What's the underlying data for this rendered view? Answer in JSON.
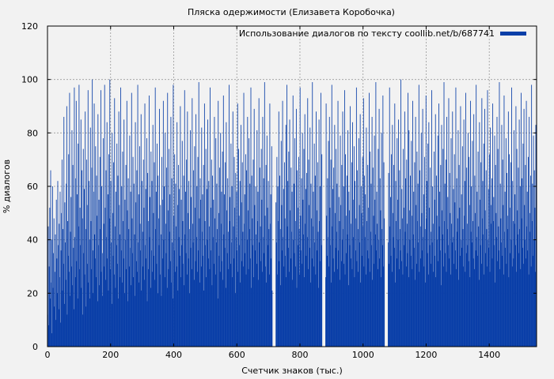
{
  "chart_data": {
    "type": "bar",
    "title": "Пляска одержимости (Елизавета Коробочка)",
    "xlabel": "Счетчик знаков (тыс.)",
    "ylabel": "% диалогов",
    "xlim": [
      0,
      1550
    ],
    "ylim": [
      0,
      120
    ],
    "xticks": [
      0,
      200,
      400,
      600,
      800,
      1000,
      1200,
      1400
    ],
    "yticks": [
      0,
      20,
      40,
      60,
      80,
      100,
      120
    ],
    "grid": true,
    "legend_position": "top-right",
    "colors": {
      "series": "#0a3fa8",
      "grid": "#999999",
      "background": "#f2f2f2"
    },
    "gaps": [
      [
        712,
        722
      ],
      [
        870,
        880
      ],
      [
        1068,
        1078
      ]
    ],
    "series": [
      {
        "name": "Использование диалогов по тексту coollib.net/b/687741",
        "bin_width": 1.5,
        "values": [
          12,
          45,
          8,
          30,
          52,
          18,
          66,
          24,
          40,
          5,
          60,
          22,
          35,
          48,
          15,
          28,
          42,
          10,
          55,
          33,
          20,
          62,
          38,
          14,
          46,
          26,
          58,
          9,
          36,
          50,
          70,
          21,
          44,
          31,
          86,
          16,
          54,
          39,
          25,
          61,
          90,
          12,
          47,
          34,
          72,
          28,
          95,
          19,
          43,
          56,
          30,
          81,
          23,
          68,
          37,
          14,
          97,
          41,
          26,
          63,
          92,
          32,
          57,
          18,
          76,
          45,
          98,
          29,
          52,
          38,
          85,
          22,
          66,
          48,
          12,
          74,
          35,
          59,
          27,
          88,
          44,
          15,
          70,
          53,
          31,
          96,
          24,
          62,
          40,
          18,
          82,
          47,
          29,
          67,
          100,
          36,
          20,
          58,
          91,
          42,
          33,
          75,
          26,
          64,
          49,
          17,
          87,
          38,
          55,
          23,
          71,
          44,
          96,
          28,
          60,
          35,
          19,
          78,
          46,
          30,
          98,
          52,
          25,
          66,
          41,
          84,
          33,
          57,
          21,
          72,
          48,
          100,
          29,
          62,
          39,
          16,
          80,
          50,
          34,
          69,
          27,
          93,
          45,
          22,
          58,
          38,
          76,
          31,
          64,
          18,
          88,
          53,
          42,
          26,
          97,
          36,
          60,
          24,
          73,
          47,
          33,
          85,
          20,
          55,
          40,
          68,
          29,
          92,
          51,
          17,
          63,
          44,
          30,
          79,
          37,
          58,
          23,
          95,
          48,
          35,
          71,
          26,
          61,
          42,
          19,
          84,
          54,
          32,
          66,
          28,
          98,
          39,
          57,
          24,
          75,
          46,
          36,
          87,
          21,
          62,
          43,
          30,
          70,
          52,
          25,
          91,
          38,
          59,
          33,
          78,
          17,
          65,
          47,
          29,
          94,
          41,
          56,
          22,
          73,
          36,
          62,
          28,
          83,
          50,
          34,
          69,
          25,
          97,
          44,
          58,
          31,
          76,
          20,
          64,
          48,
          38,
          89,
          27,
          53,
          42,
          19,
          71,
          55,
          33,
          92,
          40,
          60,
          26,
          80,
          46,
          35,
          67,
          22,
          95,
          51,
          29,
          74,
          43,
          57,
          32,
          86,
          24,
          63,
          39,
          18,
          98,
          49,
          36,
          72,
          28,
          61,
          45,
          30,
          84,
          53,
          21,
          68,
          41,
          59,
          34,
          90,
          26,
          55,
          38,
          77,
          47,
          31,
          64,
          23,
          96,
          42,
          58,
          35,
          70,
          27,
          88,
          50,
          33,
          62,
          44,
          20,
          81,
          37,
          56,
          29,
          93,
          46,
          39,
          66,
          25,
          75,
          52,
          32,
          87,
          41,
          60,
          28,
          71,
          36,
          99,
          48,
          24,
          63,
          55,
          30,
          82,
          43,
          57,
          34,
          68,
          21,
          91,
          47,
          38,
          74,
          26,
          59,
          40,
          85,
          33,
          62,
          45,
          29,
          97,
          52,
          36,
          70,
          23,
          64,
          41,
          55,
          31,
          86,
          48,
          27,
          78,
          39,
          61,
          44,
          18,
          92,
          50,
          34,
          67,
          28,
          80,
          46,
          58,
          32,
          73,
          25,
          94,
          42,
          57,
          37,
          69,
          22,
          84,
          51,
          35,
          63,
          43,
          29,
          98,
          47,
          56,
          31,
          76,
          39,
          60,
          26,
          88,
          45,
          33,
          71,
          52,
          20,
          65,
          41,
          58,
          36,
          91,
          28,
          74,
          49,
          38,
          62,
          24,
          83,
          54,
          32,
          69,
          43,
          30,
          95,
          46,
          57,
          35,
          72,
          27,
          66,
          40,
          86,
          51,
          29,
          78,
          44,
          61,
          33,
          97,
          22,
          64,
          48,
          38,
          70,
          26,
          89,
          53,
          36,
          60,
          42,
          31,
          81,
          47,
          58,
          25,
          93,
          39,
          67,
          45,
          32,
          74,
          55,
          28,
          86,
          41,
          63,
          35,
          99,
          49,
          30,
          68,
          24,
          79,
          52,
          38,
          62,
          44,
          27,
          91,
          46,
          57,
          33,
          75,
          21,
          84,
          50,
          36,
          66,
          42,
          29,
          96,
          54,
          39,
          71,
          27,
          60,
          47,
          88,
          32,
          64,
          44,
          23,
          77,
          53,
          36,
          92,
          41,
          59,
          30,
          69,
          48,
          34,
          83,
          26,
          98,
          45,
          62,
          37,
          73,
          28,
          85,
          51,
          33,
          67,
          43,
          58,
          25,
          94,
          40,
          61,
          35,
          78,
          47,
          30,
          89,
          22,
          66,
          52,
          38,
          71,
          44,
          27,
          97,
          49,
          36,
          63,
          31,
          80,
          55,
          42,
          74,
          26,
          87,
          46,
          59,
          34,
          65,
          41,
          93,
          29,
          70,
          53,
          37,
          82,
          24,
          61,
          48,
          33,
          99,
          45,
          58,
          30,
          76,
          39,
          64,
          27,
          88,
          51,
          36,
          69,
          43,
          22,
          85,
          47,
          60,
          32,
          95,
          38,
          72,
          54,
          28,
          66,
          44,
          80,
          35,
          57,
          26,
          91,
          49,
          34,
          63,
          41,
          77,
          30,
          86,
          52,
          38,
          70,
          24,
          98,
          45,
          59,
          33,
          67,
          28,
          83,
          50,
          37,
          74,
          43,
          61,
          29,
          92,
          36,
          56,
          47,
          25,
          79,
          53,
          32,
          68,
          40,
          88,
          44,
          60,
          31,
          96,
          27,
          72,
          49,
          35,
          64,
          42,
          81,
          23,
          58,
          51,
          38,
          90,
          46,
          33,
          69,
          29,
          84,
          55,
          41,
          75,
          26,
          62,
          48,
          36,
          97,
          32,
          66,
          44,
          28,
          78,
          53,
          39,
          87,
          24,
          60,
          50,
          34,
          71,
          45,
          93,
          30,
          64,
          41,
          57,
          27,
          82,
          47,
          36,
          68,
          52,
          33,
          95,
          28,
          73,
          43,
          61,
          38,
          86,
          25,
          67,
          49,
          31,
          79,
          55,
          42,
          99,
          36,
          58,
          46,
          29,
          74,
          40,
          89,
          33,
          63,
          51,
          26,
          80,
          44,
          38,
          94,
          30,
          69,
          48,
          35,
          76,
          42,
          60,
          27,
          87,
          53,
          39,
          65,
          31,
          97,
          45,
          56,
          34,
          72,
          28,
          83,
          50,
          41,
          68,
          37,
          91,
          24,
          62,
          47,
          33,
          78,
          55,
          40,
          85,
          29,
          66,
          44,
          36,
          100,
          32,
          59,
          48,
          27,
          74,
          52,
          38,
          88,
          43,
          63,
          30,
          70,
          46,
          35,
          95,
          26,
          81,
          51,
          40,
          64,
          34,
          77,
          49,
          29,
          92,
          42,
          58,
          37,
          69,
          25,
          86,
          53,
          31,
          73,
          47,
          61,
          39,
          98,
          28,
          66,
          45,
          33,
          80,
          50,
          36,
          89,
          41,
          57,
          30,
          71,
          44,
          24,
          94,
          48,
          62,
          35,
          76,
          27,
          84,
          52,
          38,
          67,
          43,
          31,
          96,
          39,
          60,
          46,
          28,
          73,
          55,
          34,
          87,
          26,
          64,
          49,
          40,
          79,
          32,
          91,
          45,
          58,
          36,
          68,
          23,
          83,
          51,
          42,
          74,
          30,
          99,
          47,
          61,
          35,
          70,
          28,
          86,
          44,
          56,
          38,
          93,
          33,
          65,
          50,
          27,
          78,
          46,
          39,
          88,
          41,
          59,
          31,
          72,
          54,
          36,
          97,
          29,
          63,
          43,
          48,
          81,
          25,
          68,
          52,
          34,
          90,
          40,
          57,
          37,
          75,
          44,
          30,
          85,
          49,
          62,
          28,
          95,
          35,
          67,
          46,
          38,
          80,
          32,
          71,
          53,
          26,
          92,
          43,
          60,
          39,
          77,
          47,
          33,
          87,
          29,
          64,
          50,
          36,
          98,
          41,
          58,
          34,
          73,
          45,
          25,
          84,
          55,
          38,
          69,
          31,
          93,
          48,
          62,
          42,
          76,
          27,
          89,
          51,
          35,
          66,
          44,
          30,
          96,
          40,
          59,
          37,
          72,
          28,
          82,
          53,
          46,
          63,
          33,
          91,
          47,
          56,
          38,
          79,
          24,
          68,
          50,
          41,
          86,
          32,
          74,
          45,
          36,
          99,
          29,
          61,
          48,
          39,
          83,
          34,
          70,
          53,
          27,
          94,
          43,
          58,
          37,
          78,
          31,
          65,
          49,
          44,
          88,
          26,
          72,
          52,
          35,
          69,
          40,
          97,
          30,
          62,
          47,
          33,
          81,
          46,
          57,
          38,
          90,
          28,
          74,
          51,
          42,
          67,
          35,
          85,
          44,
          60,
          29,
          95,
          48,
          63,
          37,
          76,
          31,
          89,
          53,
          40,
          68,
          33,
          92,
          45,
          58,
          36,
          71,
          27,
          86,
          50,
          43,
          64,
          30,
          98,
          47,
          61,
          34,
          79,
          40,
          66,
          52,
          28,
          83,
          45,
          57,
          36,
          93,
          31,
          72,
          48,
          39,
          88,
          43,
          60,
          29,
          97,
          35,
          65,
          51,
          38,
          75,
          46,
          32,
          90,
          41,
          69,
          55,
          27,
          84,
          49,
          62,
          34,
          78,
          38,
          59,
          44,
          30,
          95,
          52,
          67,
          36,
          73,
          42,
          28,
          87,
          47,
          63,
          33,
          99,
          40,
          58,
          50,
          31,
          80,
          45,
          66,
          35,
          91,
          29,
          70,
          54,
          38,
          76,
          43,
          61,
          32,
          86,
          48,
          37,
          93
        ]
      }
    ]
  }
}
